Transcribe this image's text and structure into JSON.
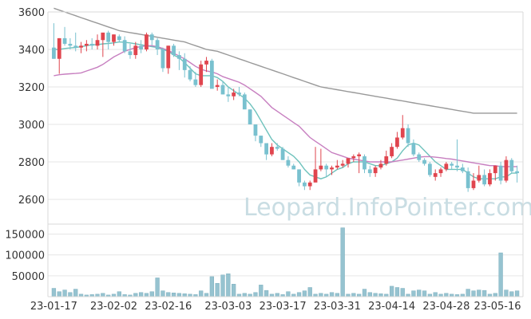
{
  "watermark": "Leopard.InfoPointer.com",
  "colors": {
    "up": "#e0454e",
    "down": "#79c1cf",
    "volume": "#96c3d0",
    "ma_short": "#6ec2bc",
    "ma_mid": "#c77fc0",
    "ma_long": "#999999",
    "grid": "#e6e6e6",
    "axis": "#d9d9d9"
  },
  "chart_data": [
    {
      "type": "candlestick",
      "ylim": [
        2500,
        3600
      ],
      "yticks": [
        "3600",
        "3400",
        "3200",
        "3000",
        "2800",
        "2600"
      ],
      "ytick_values": [
        3600,
        3400,
        3200,
        3000,
        2800,
        2600
      ],
      "grid": true,
      "series": [
        {
          "kind": "candles",
          "values": [
            [
              3410,
              3540,
              3350,
              3350
            ],
            [
              3350,
              3460,
              3270,
              3460
            ],
            [
              3460,
              3520,
              3420,
              3430
            ],
            [
              3430,
              3460,
              3400,
              3420
            ],
            [
              3420,
              3490,
              3390,
              3410
            ],
            [
              3410,
              3440,
              3380,
              3420
            ],
            [
              3420,
              3450,
              3390,
              3430
            ],
            [
              3430,
              3460,
              3400,
              3420
            ],
            [
              3420,
              3480,
              3400,
              3450
            ],
            [
              3450,
              3480,
              3360,
              3490
            ],
            [
              3490,
              3500,
              3400,
              3440
            ],
            [
              3440,
              3480,
              3420,
              3480
            ],
            [
              3470,
              3480,
              3440,
              3450
            ],
            [
              3450,
              3470,
              3380,
              3390
            ],
            [
              3390,
              3430,
              3350,
              3370
            ],
            [
              3370,
              3440,
              3350,
              3420
            ],
            [
              3420,
              3450,
              3380,
              3400
            ],
            [
              3400,
              3490,
              3390,
              3480
            ],
            [
              3480,
              3490,
              3420,
              3450
            ],
            [
              3450,
              3460,
              3370,
              3400
            ],
            [
              3400,
              3410,
              3280,
              3300
            ],
            [
              3300,
              3420,
              3270,
              3420
            ],
            [
              3420,
              3430,
              3360,
              3370
            ],
            [
              3370,
              3390,
              3290,
              3350
            ],
            [
              3350,
              3380,
              3250,
              3290
            ],
            [
              3290,
              3310,
              3230,
              3240
            ],
            [
              3240,
              3280,
              3200,
              3210
            ],
            [
              3210,
              3340,
              3200,
              3320
            ],
            [
              3320,
              3360,
              3280,
              3340
            ],
            [
              3340,
              3350,
              3200,
              3190
            ],
            [
              3200,
              3240,
              3180,
              3210
            ],
            [
              3210,
              3230,
              3160,
              3160
            ],
            [
              3160,
              3200,
              3120,
              3150
            ],
            [
              3150,
              3190,
              3130,
              3170
            ],
            [
              3170,
              3200,
              3150,
              3160
            ],
            [
              3160,
              3170,
              3100,
              3080
            ],
            [
              3080,
              3080,
              3010,
              3000
            ],
            [
              3000,
              3000,
              2910,
              2940
            ],
            [
              2940,
              2940,
              2880,
              2900
            ],
            [
              2900,
              2880,
              2810,
              2840
            ],
            [
              2840,
              2900,
              2830,
              2880
            ],
            [
              2880,
              2900,
              2860,
              2870
            ],
            [
              2870,
              2880,
              2810,
              2810
            ],
            [
              2810,
              2830,
              2770,
              2780
            ],
            [
              2780,
              2790,
              2760,
              2760
            ],
            [
              2760,
              2760,
              2670,
              2690
            ],
            [
              2690,
              2700,
              2650,
              2670
            ],
            [
              2670,
              2700,
              2650,
              2690
            ],
            [
              2690,
              2880,
              2700,
              2760
            ],
            [
              2760,
              2870,
              2750,
              2780
            ],
            [
              2780,
              2790,
              2720,
              2760
            ],
            [
              2760,
              2780,
              2730,
              2770
            ],
            [
              2770,
              2810,
              2760,
              2780
            ],
            [
              2780,
              2810,
              2770,
              2790
            ],
            [
              2790,
              2820,
              2770,
              2820
            ],
            [
              2820,
              2840,
              2800,
              2830
            ],
            [
              2830,
              2850,
              2740,
              2840
            ],
            [
              2830,
              2840,
              2740,
              2760
            ],
            [
              2760,
              2780,
              2720,
              2740
            ],
            [
              2740,
              2780,
              2720,
              2770
            ],
            [
              2770,
              2810,
              2760,
              2790
            ],
            [
              2790,
              2860,
              2780,
              2830
            ],
            [
              2830,
              2900,
              2820,
              2880
            ],
            [
              2880,
              2960,
              2870,
              2930
            ],
            [
              2930,
              3050,
              2920,
              2980
            ],
            [
              2980,
              3000,
              2880,
              2900
            ],
            [
              2900,
              2920,
              2830,
              2840
            ],
            [
              2840,
              2850,
              2800,
              2810
            ],
            [
              2810,
              2820,
              2780,
              2790
            ],
            [
              2790,
              2800,
              2720,
              2730
            ],
            [
              2720,
              2760,
              2700,
              2740
            ],
            [
              2740,
              2770,
              2720,
              2760
            ],
            [
              2760,
              2800,
              2750,
              2790
            ],
            [
              2790,
              2800,
              2760,
              2780
            ],
            [
              2780,
              2920,
              2750,
              2770
            ],
            [
              2770,
              2790,
              2740,
              2750
            ],
            [
              2750,
              2770,
              2640,
              2660
            ],
            [
              2660,
              2740,
              2650,
              2700
            ],
            [
              2700,
              2780,
              2690,
              2730
            ],
            [
              2730,
              2760,
              2670,
              2680
            ],
            [
              2680,
              2760,
              2670,
              2740
            ],
            [
              2740,
              2780,
              2700,
              2780
            ],
            [
              2780,
              2800,
              2680,
              2700
            ],
            [
              2700,
              2830,
              2690,
              2810
            ],
            [
              2810,
              2820,
              2740,
              2750
            ],
            [
              2750,
              2780,
              2690,
              2740
            ]
          ]
        },
        {
          "kind": "ma",
          "color_key": "ma_short",
          "values": [
            3400,
            3400,
            3405,
            3408,
            3410,
            3415,
            3420,
            3425,
            3425,
            3430,
            3432,
            3435,
            3440,
            3438,
            3435,
            3430,
            3425,
            3420,
            3415,
            3410,
            3400,
            3390,
            3370,
            3355,
            3330,
            3300,
            3270,
            3260,
            3260,
            3260,
            3250,
            3230,
            3200,
            3180,
            3160,
            3140,
            3110,
            3070,
            3020,
            2970,
            2920,
            2890,
            2870,
            2850,
            2830,
            2800,
            2760,
            2730,
            2720,
            2710,
            2720,
            2740,
            2760,
            2770,
            2790,
            2800,
            2800,
            2800,
            2790,
            2780,
            2780,
            2790,
            2800,
            2820,
            2860,
            2890,
            2900,
            2890,
            2860,
            2830,
            2800,
            2780,
            2760,
            2760,
            2760,
            2760,
            2740,
            2720,
            2710,
            2710,
            2710,
            2710,
            2720,
            2720,
            2740,
            2740
          ]
        },
        {
          "kind": "ma",
          "color_key": "ma_mid",
          "values": [
            3260,
            3265,
            3268,
            3270,
            3272,
            3275,
            3285,
            3295,
            3305,
            3320,
            3340,
            3360,
            3375,
            3390,
            3400,
            3410,
            3415,
            3420,
            3420,
            3415,
            3405,
            3395,
            3380,
            3365,
            3350,
            3330,
            3310,
            3295,
            3285,
            3280,
            3270,
            3255,
            3245,
            3235,
            3225,
            3210,
            3190,
            3170,
            3150,
            3120,
            3090,
            3070,
            3050,
            3030,
            3010,
            2990,
            2960,
            2930,
            2910,
            2890,
            2870,
            2850,
            2840,
            2830,
            2820,
            2815,
            2810,
            2805,
            2800,
            2800,
            2800,
            2800,
            2800,
            2805,
            2810,
            2815,
            2820,
            2825,
            2828,
            2828,
            2825,
            2822,
            2818,
            2815,
            2810,
            2805,
            2800,
            2795,
            2790,
            2785,
            2780,
            2780,
            2775,
            2775,
            2775,
            2775
          ]
        },
        {
          "kind": "ma",
          "color_key": "ma_long",
          "values": [
            3620,
            3610,
            3600,
            3590,
            3580,
            3570,
            3560,
            3550,
            3540,
            3530,
            3520,
            3510,
            3500,
            3495,
            3490,
            3485,
            3480,
            3475,
            3470,
            3465,
            3460,
            3455,
            3450,
            3445,
            3440,
            3430,
            3420,
            3410,
            3400,
            3395,
            3390,
            3380,
            3370,
            3360,
            3350,
            3340,
            3330,
            3320,
            3310,
            3300,
            3290,
            3280,
            3270,
            3260,
            3250,
            3240,
            3230,
            3220,
            3210,
            3200,
            3195,
            3190,
            3185,
            3180,
            3175,
            3170,
            3165,
            3160,
            3155,
            3150,
            3145,
            3140,
            3135,
            3130,
            3125,
            3120,
            3115,
            3110,
            3105,
            3100,
            3095,
            3090,
            3085,
            3080,
            3075,
            3070,
            3065,
            3060,
            3060,
            3060,
            3060,
            3060,
            3060,
            3060,
            3060,
            3060
          ]
        }
      ]
    },
    {
      "type": "bar",
      "ylim": [
        0,
        170000
      ],
      "yticks": [
        "150000",
        "100000",
        "50000"
      ],
      "ytick_values": [
        150000,
        100000,
        50000
      ],
      "xticks": [
        "23-01-17",
        "23-02-02",
        "23-02-16",
        "23-03-03",
        "23-03-17",
        "23-03-31",
        "23-04-14",
        "23-04-28",
        "23-05-16"
      ],
      "xtick_index": [
        0,
        11,
        21,
        32,
        42,
        52,
        62,
        72,
        83
      ],
      "values": [
        20000,
        12000,
        16000,
        10000,
        18000,
        6000,
        4000,
        5000,
        6000,
        8000,
        4000,
        6000,
        12000,
        5000,
        4000,
        8000,
        10000,
        8000,
        12000,
        45000,
        14000,
        10000,
        9000,
        8000,
        7000,
        6000,
        5000,
        14000,
        8000,
        48000,
        32000,
        52000,
        55000,
        30000,
        6000,
        8000,
        6000,
        10000,
        28000,
        15000,
        6000,
        8000,
        5000,
        12000,
        6000,
        10000,
        14000,
        22000,
        6000,
        8000,
        6000,
        10000,
        8000,
        165000,
        6000,
        8000,
        6000,
        18000,
        10000,
        8000,
        7000,
        6000,
        25000,
        22000,
        20000,
        6000,
        14000,
        16000,
        14000,
        6000,
        10000,
        6000,
        8000,
        6000,
        5000,
        6000,
        18000,
        14000,
        16000,
        15000,
        6000,
        8000,
        105000,
        16000,
        12000,
        14000
      ]
    }
  ]
}
